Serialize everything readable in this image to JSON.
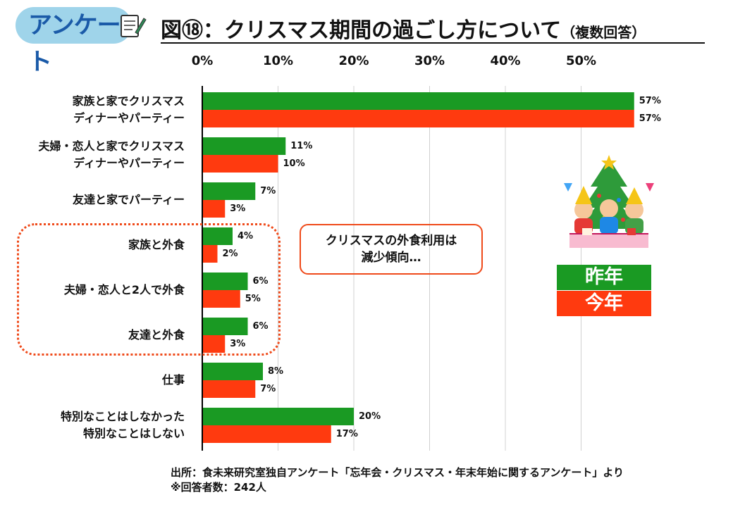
{
  "header": {
    "badge_label": "アンケート",
    "title": "図⑱：クリスマス期間の過ごし方について",
    "title_suffix": "（複数回答）"
  },
  "chart_data": {
    "type": "bar",
    "orientation": "horizontal",
    "xlim": [
      0,
      57
    ],
    "ticks": [
      "0%",
      "10%",
      "20%",
      "30%",
      "40%",
      "50%"
    ],
    "tick_values": [
      0,
      10,
      20,
      30,
      40,
      50
    ],
    "categories": [
      [
        "家族と家でクリスマス",
        "ディナーやパーティー"
      ],
      [
        "夫婦・恋人と家でクリスマス",
        "ディナーやパーティー"
      ],
      [
        "友達と家でパーティー"
      ],
      [
        "家族と外食"
      ],
      [
        "夫婦・恋人と2人で外食"
      ],
      [
        "友達と外食"
      ],
      [
        "仕事"
      ],
      [
        "特別なことはしなかった",
        "特別なことはしない"
      ]
    ],
    "series": [
      {
        "name": "昨年",
        "color": "#1a9a23",
        "values": [
          57,
          11,
          7,
          4,
          6,
          6,
          8,
          20
        ],
        "labels": [
          "57%",
          "11%",
          "7%",
          "4%",
          "6%",
          "6%",
          "8%",
          "20%"
        ]
      },
      {
        "name": "今年",
        "color": "#ff3a0f",
        "values": [
          57,
          10,
          3,
          2,
          5,
          3,
          7,
          17
        ],
        "labels": [
          "57%",
          "10%",
          "3%",
          "2%",
          "5%",
          "3%",
          "7%",
          "17%"
        ]
      }
    ],
    "grid": true,
    "legend": "right"
  },
  "callout": {
    "line1": "クリスマスの外食利用は",
    "line2": "減少傾向…"
  },
  "legend": {
    "last_year": "昨年",
    "this_year": "今年"
  },
  "footer": {
    "source": "出所：食未来研究室独自アンケート「忘年会・クリスマス・年末年始に関するアンケート」より",
    "respondents": "※回答者数：242人"
  }
}
